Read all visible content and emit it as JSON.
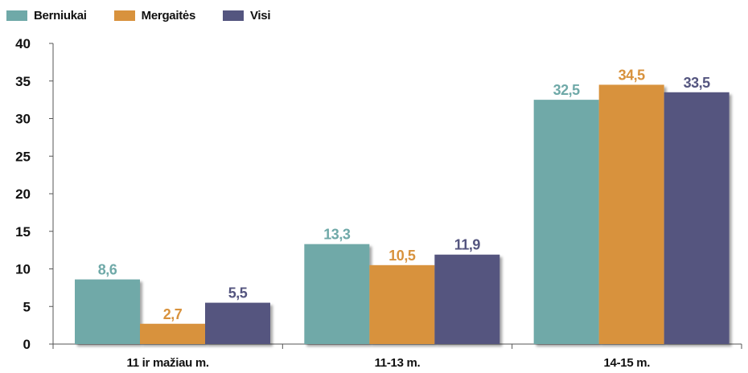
{
  "chart_data": {
    "type": "bar",
    "categories": [
      "11 ir mažiau m.",
      "11-13 m.",
      "14-15 m."
    ],
    "series": [
      {
        "name": "Berniukai",
        "values": [
          8.6,
          13.3,
          32.5
        ],
        "labels": [
          "8,6",
          "13,3",
          "32,5"
        ],
        "color": "#6fa9a8"
      },
      {
        "name": "Mergaitės",
        "values": [
          2.7,
          10.5,
          34.5
        ],
        "labels": [
          "2,7",
          "10,5",
          "34,5"
        ],
        "color": "#d8923d"
      },
      {
        "name": "Visi",
        "values": [
          5.5,
          11.9,
          33.5
        ],
        "labels": [
          "5,5",
          "11,9",
          "33,5"
        ],
        "color": "#54557f"
      }
    ],
    "title": "",
    "xlabel": "",
    "ylabel": "",
    "ylim": [
      0,
      40
    ],
    "yticks": [
      0,
      5,
      10,
      15,
      20,
      25,
      30,
      35,
      40
    ],
    "grid": false,
    "legend_position": "top-left"
  }
}
